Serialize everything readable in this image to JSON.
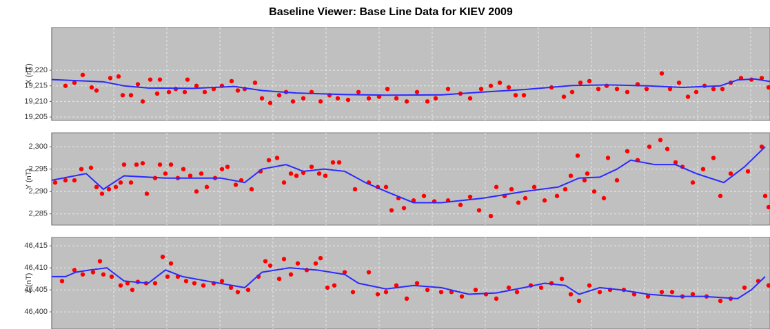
{
  "title": "Baseline Viewer: Base Line Data for KIEV 2009",
  "chart_data": [
    {
      "type": "scatter",
      "ylabel": "X (nT)",
      "xlim": [
        0,
        1042
      ],
      "ylim": [
        19203.9,
        19233.7
      ],
      "grid": true,
      "yticks": [
        {
          "value": 19205,
          "label": "19,205"
        },
        {
          "value": 19210,
          "label": "19,210"
        },
        {
          "value": 19215,
          "label": "19,215"
        },
        {
          "value": 19220,
          "label": "19,220"
        }
      ],
      "series": [
        {
          "mode": "markers",
          "color": "#ff0000",
          "x": [
            20,
            33,
            45,
            58,
            65,
            85,
            97,
            103,
            115,
            125,
            132,
            143,
            153,
            157,
            170,
            180,
            193,
            197,
            210,
            222,
            235,
            247,
            261,
            270,
            280,
            295,
            305,
            317,
            330,
            340,
            350,
            365,
            377,
            390,
            403,
            415,
            430,
            445,
            460,
            475,
            487,
            500,
            515,
            530,
            545,
            557,
            575,
            593,
            607,
            623,
            637,
            650,
            663,
            673,
            685,
            725,
            743,
            755,
            767,
            780,
            793,
            805,
            820,
            835,
            850,
            863,
            885,
            897,
            910,
            923,
            935,
            947,
            960,
            973,
            985,
            1000,
            1015,
            1030,
            1040
          ],
          "values": [
            19215,
            19216,
            19218.5,
            19214.5,
            19213.5,
            19217.5,
            19218,
            19212,
            19212,
            19215.5,
            19210,
            19217,
            19212.5,
            19217,
            19213,
            19214,
            19213,
            19217,
            19215,
            19213,
            19214,
            19215,
            19216.5,
            19213.5,
            19214,
            19216,
            19211,
            19209.5,
            19212,
            19213,
            19210,
            19211,
            19213,
            19210,
            19212,
            19211,
            19210.5,
            19213,
            19211,
            19211.5,
            19214,
            19211,
            19210,
            19213,
            19210,
            19211,
            19214,
            19212.5,
            19211,
            19214,
            19215,
            19216,
            19214.5,
            19212,
            19212,
            19214.5,
            19211.5,
            19213,
            19216,
            19216.5,
            19214,
            19215,
            19214,
            19213,
            19215.5,
            19214,
            19219,
            19214,
            19216,
            19211.5,
            19213,
            19215,
            19214,
            19214,
            19216,
            19217.5,
            19217,
            19217.5,
            19214.5
          ]
        },
        {
          "mode": "line",
          "color": "#2a2aff",
          "x": [
            0,
            75,
            105,
            140,
            205,
            265,
            305,
            355,
            425,
            485,
            565,
            625,
            685,
            755,
            805,
            865,
            915,
            970,
            995,
            1020,
            1042
          ],
          "values": [
            19217,
            19216.3,
            19215,
            19214.3,
            19214.2,
            19214.8,
            19213.5,
            19212.7,
            19212.2,
            19212,
            19212.1,
            19213,
            19213.8,
            19215.1,
            19215.3,
            19215,
            19214.5,
            19215,
            19216.9,
            19217.2,
            19216.4
          ]
        }
      ]
    },
    {
      "type": "scatter",
      "ylabel": "Y (nT)",
      "xlim": [
        0,
        1042
      ],
      "ylim": [
        2282.5,
        2303.1
      ],
      "grid": true,
      "yticks": [
        {
          "value": 2285,
          "label": "2,285"
        },
        {
          "value": 2290,
          "label": "2,290"
        },
        {
          "value": 2295,
          "label": "2,295"
        },
        {
          "value": 2300,
          "label": "2,300"
        }
      ],
      "series": [
        {
          "mode": "markers",
          "color": "#ff0000",
          "x": [
            5,
            20,
            33,
            43,
            57,
            65,
            73,
            83,
            93,
            100,
            105,
            115,
            123,
            132,
            138,
            150,
            157,
            165,
            173,
            183,
            191,
            201,
            210,
            217,
            225,
            237,
            247,
            255,
            267,
            275,
            290,
            303,
            315,
            327,
            337,
            347,
            355,
            365,
            377,
            388,
            397,
            408,
            417,
            440,
            460,
            473,
            485,
            493,
            503,
            511,
            525,
            540,
            555,
            575,
            593,
            607,
            620,
            637,
            645,
            657,
            667,
            677,
            687,
            700,
            715,
            733,
            745,
            753,
            763,
            773,
            777,
            787,
            801,
            807,
            820,
            835,
            850,
            867,
            883,
            893,
            905,
            915,
            930,
            945,
            960,
            970,
            985,
            1010,
            1030,
            1035,
            1040
          ],
          "values": [
            2292,
            2292.5,
            2292.5,
            2295,
            2295.3,
            2291,
            2289.5,
            2290.5,
            2291,
            2292,
            2296,
            2292,
            2296,
            2296.3,
            2289.5,
            2293,
            2296,
            2294,
            2296,
            2293,
            2295,
            2293.5,
            2290,
            2294,
            2291,
            2293,
            2295,
            2295.5,
            2291.5,
            2292.5,
            2290.5,
            2294.5,
            2297,
            2297.5,
            2292,
            2294,
            2293.5,
            2294.2,
            2295.5,
            2294,
            2293.5,
            2296.5,
            2296.5,
            2290.5,
            2292,
            2291,
            2291,
            2285.8,
            2288.5,
            2286.3,
            2288,
            2289,
            2287.8,
            2288,
            2287,
            2288.8,
            2285.8,
            2284.5,
            2291,
            2289,
            2290.5,
            2287.5,
            2288.5,
            2291,
            2288,
            2289,
            2290.5,
            2293.5,
            2298,
            2292.5,
            2294,
            2290,
            2288.5,
            2297.5,
            2292.5,
            2299,
            2297,
            2300,
            2301.5,
            2299.5,
            2296.5,
            2295.5,
            2292,
            2295,
            2297.5,
            2289,
            2294,
            2294.5,
            2300,
            2289,
            2286.5
          ]
        },
        {
          "mode": "line",
          "color": "#2a2aff",
          "x": [
            0,
            50,
            75,
            105,
            165,
            245,
            280,
            305,
            340,
            365,
            395,
            425,
            455,
            485,
            525,
            565,
            625,
            685,
            735,
            765,
            795,
            820,
            840,
            875,
            905,
            935,
            975,
            1005,
            1035
          ],
          "values": [
            2292.5,
            2294,
            2290.5,
            2293.5,
            2293,
            2293,
            2292,
            2295,
            2296,
            2294.5,
            2295,
            2294.5,
            2292,
            2290,
            2287.5,
            2287.5,
            2288.5,
            2290,
            2291,
            2293,
            2293.2,
            2295,
            2297,
            2296,
            2296,
            2294,
            2292,
            2295.5,
            2300
          ]
        }
      ]
    },
    {
      "type": "scatter",
      "ylabel": "Z (nT)",
      "xlim": [
        0,
        1042
      ],
      "ylim": [
        46396.1,
        46416.9
      ],
      "grid": true,
      "yticks": [
        {
          "value": 46400,
          "label": "46,400"
        },
        {
          "value": 46405,
          "label": "46,405"
        },
        {
          "value": 46410,
          "label": "46,410"
        },
        {
          "value": 46415,
          "label": "46,415"
        }
      ],
      "series": [
        {
          "mode": "markers",
          "color": "#ff0000",
          "x": [
            15,
            33,
            45,
            60,
            70,
            75,
            87,
            100,
            110,
            117,
            125,
            137,
            150,
            161,
            168,
            173,
            183,
            195,
            207,
            220,
            235,
            247,
            260,
            270,
            285,
            300,
            310,
            317,
            330,
            337,
            347,
            357,
            370,
            383,
            390,
            400,
            410,
            425,
            437,
            460,
            473,
            485,
            500,
            515,
            530,
            545,
            565,
            580,
            595,
            615,
            630,
            645,
            663,
            675,
            695,
            710,
            725,
            740,
            753,
            765,
            780,
            795,
            810,
            830,
            845,
            865,
            885,
            900,
            915,
            930,
            950,
            970,
            985,
            1005,
            1025,
            1040
          ],
          "values": [
            46407,
            46409.5,
            46408.5,
            46409,
            46411.5,
            46408.5,
            46408,
            46406,
            46406.5,
            46405,
            46406.8,
            46406.5,
            46406.5,
            46412.5,
            46408,
            46411,
            46408,
            46407,
            46406.5,
            46406,
            46406.5,
            46407,
            46405.5,
            46404.5,
            46405,
            46408,
            46411.5,
            46410.5,
            46407.5,
            46412,
            46408.5,
            46411,
            46409.5,
            46411,
            46412.2,
            46405.5,
            46406,
            46409,
            46404.5,
            46409,
            46404,
            46404.5,
            46406,
            46403,
            46406.5,
            46405,
            46404.5,
            46404.5,
            46403.5,
            46405,
            46404,
            46403,
            46405.5,
            46404.5,
            46406,
            46405.5,
            46406.5,
            46407.5,
            46404,
            46402.5,
            46406,
            46404.5,
            46405,
            46405,
            46404,
            46403.5,
            46404.5,
            46404.5,
            46403.5,
            46404,
            46403.5,
            46402.5,
            46403,
            46405.5,
            46407,
            46406
          ]
        },
        {
          "mode": "line",
          "color": "#2a2aff",
          "x": [
            0,
            20,
            35,
            55,
            80,
            105,
            140,
            165,
            190,
            225,
            280,
            305,
            345,
            385,
            425,
            445,
            485,
            525,
            565,
            605,
            645,
            685,
            715,
            745,
            765,
            795,
            825,
            865,
            905,
            945,
            995,
            1015,
            1035
          ],
          "values": [
            46408,
            46408,
            46409,
            46409.5,
            46410,
            46407,
            46406.5,
            46409.5,
            46408,
            46407,
            46405.5,
            46409,
            46410,
            46409.5,
            46408.5,
            46406.5,
            46405.2,
            46406,
            46405.5,
            46404,
            46404.3,
            46405.5,
            46406.5,
            46406,
            46404,
            46405.5,
            46405,
            46404,
            46403.5,
            46403.5,
            46403,
            46405,
            46408
          ]
        }
      ]
    }
  ]
}
